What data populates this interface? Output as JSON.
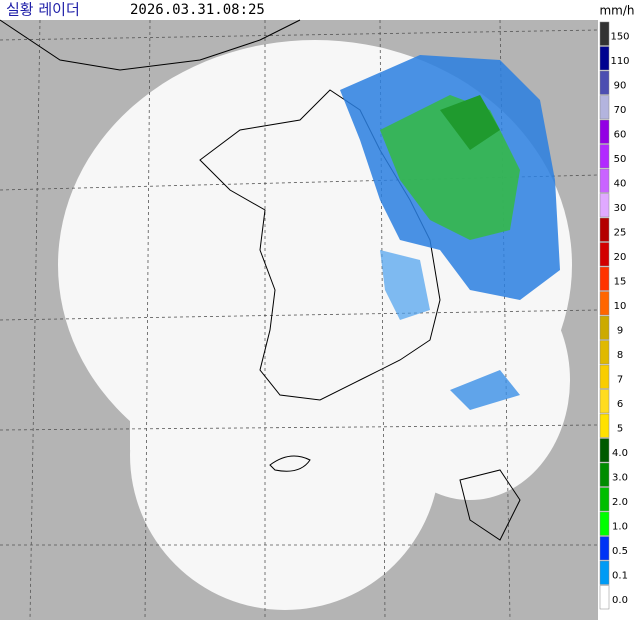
{
  "header": {
    "title": "실황 레이더",
    "time": "2026.03.31.08:25"
  },
  "legend": {
    "unit": "mm/h",
    "levels": [
      {
        "label": "150",
        "color": "#333333"
      },
      {
        "label": "110",
        "color": "#000390"
      },
      {
        "label": "90",
        "color": "#4c4eb1"
      },
      {
        "label": "70",
        "color": "#b3b4de"
      },
      {
        "label": "60",
        "color": "#9300e4"
      },
      {
        "label": "50",
        "color": "#b229ff"
      },
      {
        "label": "40",
        "color": "#c964ff"
      },
      {
        "label": "30",
        "color": "#e0a9ff"
      },
      {
        "label": "25",
        "color": "#b40000"
      },
      {
        "label": "20",
        "color": "#d20000"
      },
      {
        "label": "15",
        "color": "#ff3300"
      },
      {
        "label": "10",
        "color": "#ff6600"
      },
      {
        "label": "9",
        "color": "#ccaa00"
      },
      {
        "label": "8",
        "color": "#e0b900"
      },
      {
        "label": "7",
        "color": "#f9cd00"
      },
      {
        "label": "6",
        "color": "#ffdc1f"
      },
      {
        "label": "5",
        "color": "#ffe100"
      },
      {
        "label": "4.0",
        "color": "#005a00"
      },
      {
        "label": "3.0",
        "color": "#008c00"
      },
      {
        "label": "2.0",
        "color": "#00be00"
      },
      {
        "label": "1.0",
        "color": "#00ff00"
      },
      {
        "label": "0.5",
        "color": "#0033f5"
      },
      {
        "label": "0.1",
        "color": "#009bf5"
      },
      {
        "label": "0.0",
        "color": "#ffffff"
      }
    ]
  }
}
